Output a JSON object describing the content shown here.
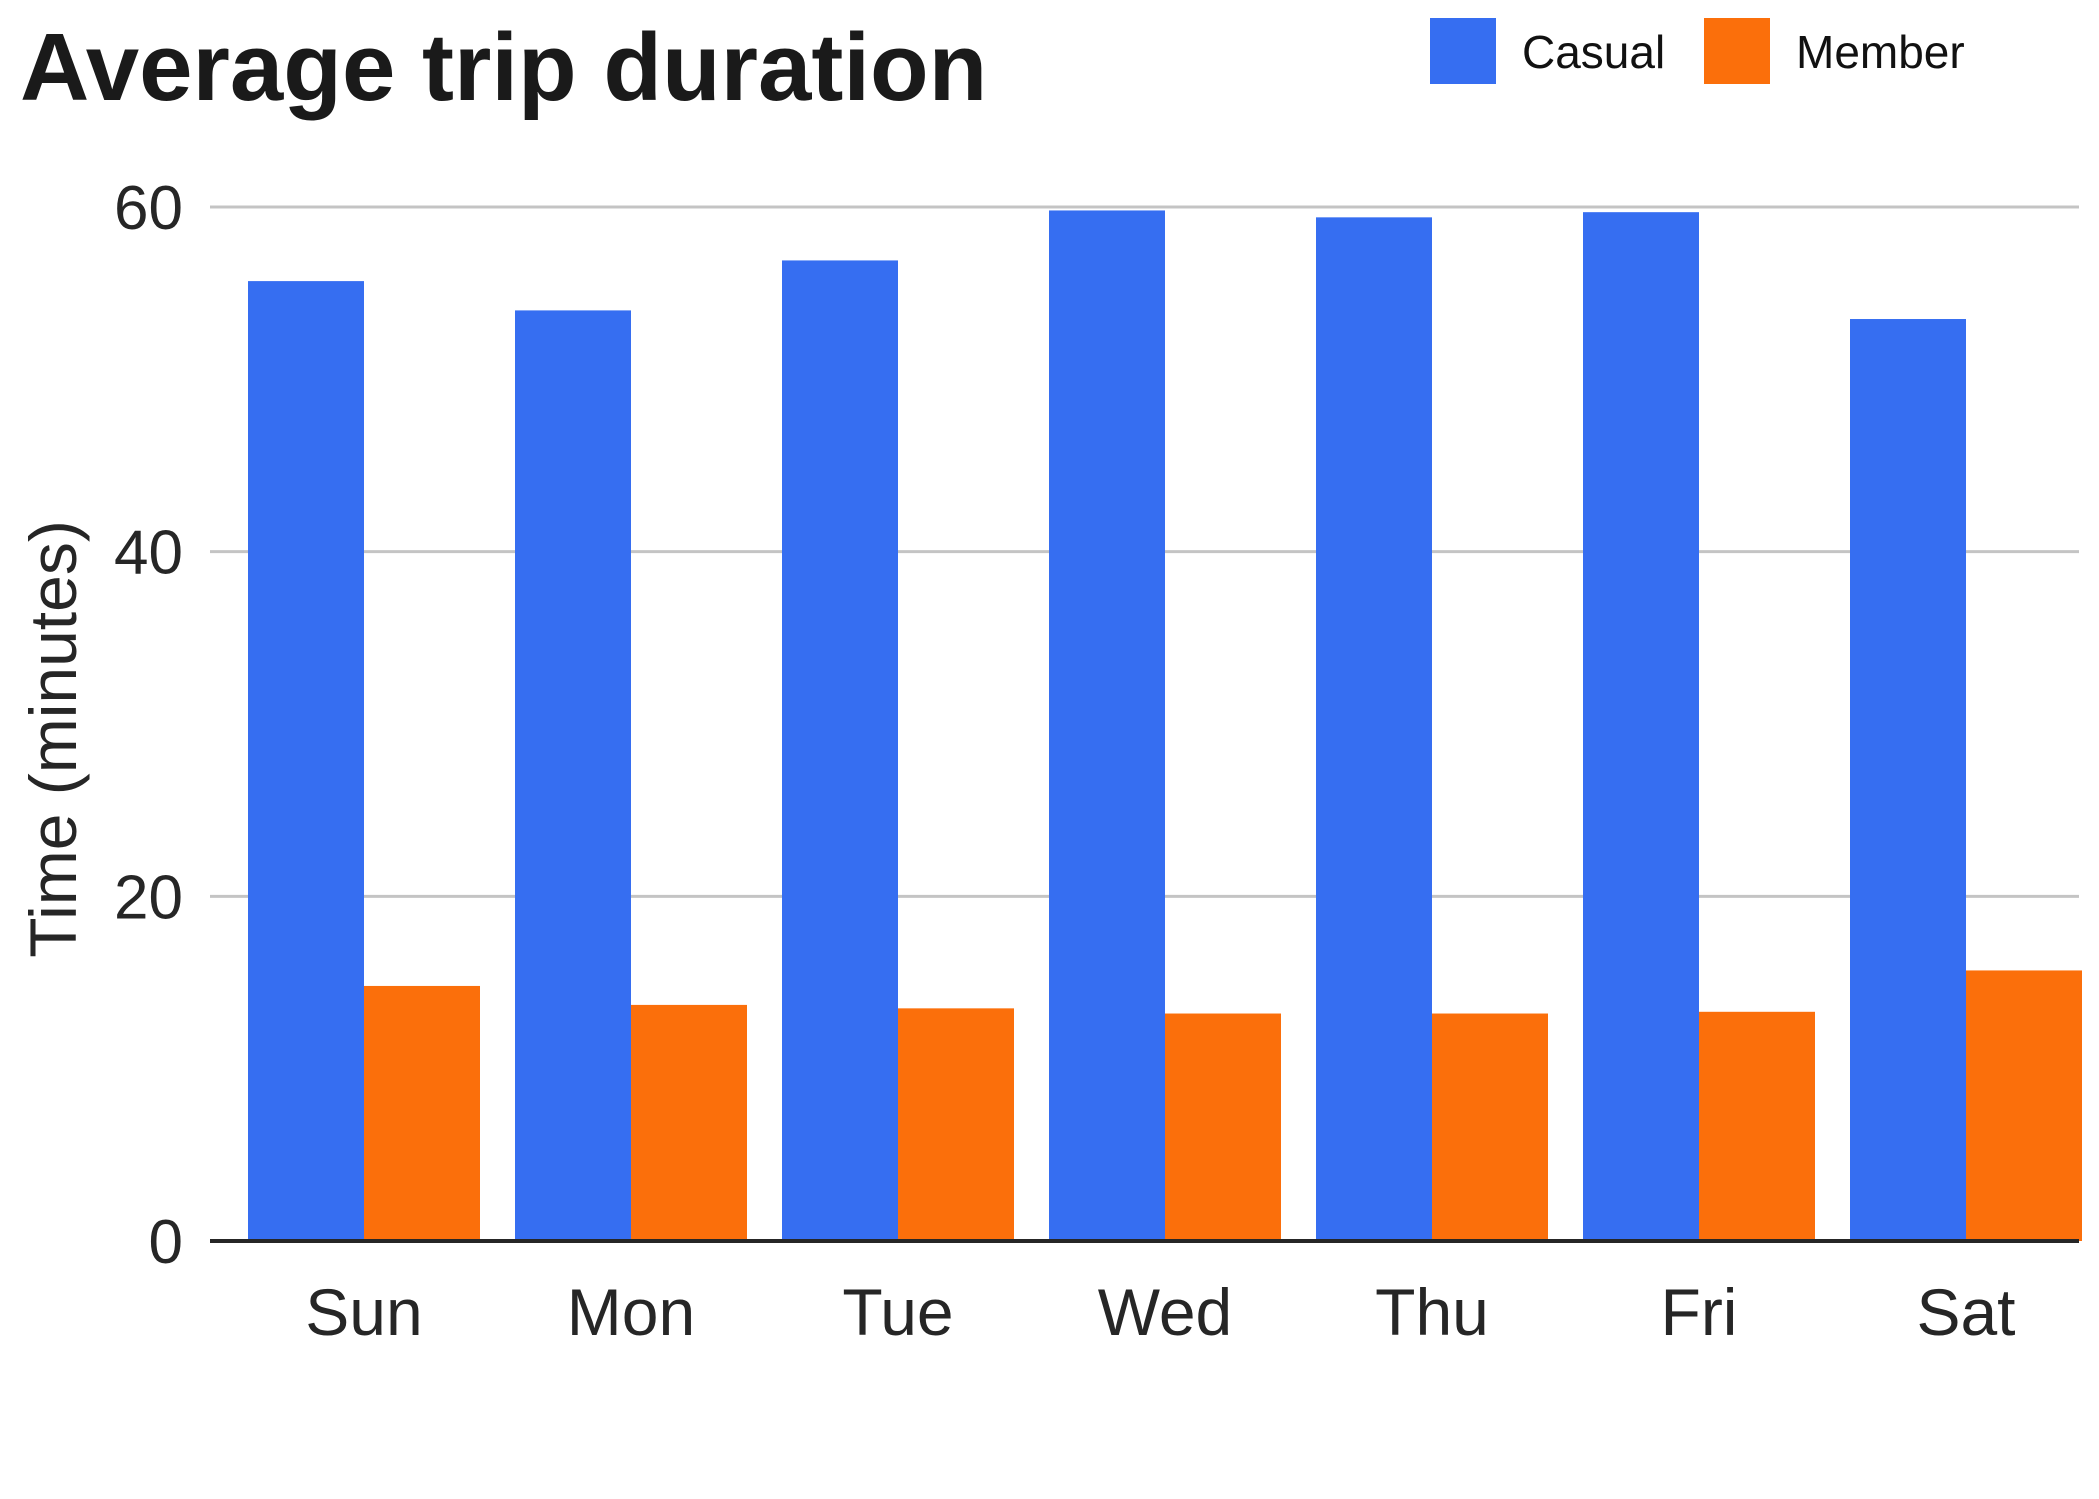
{
  "chart_data": {
    "type": "bar",
    "title": "Average trip duration",
    "xlabel": "",
    "ylabel": "Time (minutes)",
    "categories": [
      "Sun",
      "Mon",
      "Tue",
      "Wed",
      "Thu",
      "Fri",
      "Sat"
    ],
    "series": [
      {
        "name": "Casual",
        "color": "#366EF1",
        "values": [
          55.7,
          54.0,
          56.9,
          59.8,
          59.4,
          59.7,
          53.5
        ]
      },
      {
        "name": "Member",
        "color": "#FB6F0B",
        "values": [
          14.8,
          13.7,
          13.5,
          13.2,
          13.2,
          13.3,
          15.7
        ]
      }
    ],
    "ylim": [
      0,
      60
    ],
    "yticks": [
      "0",
      "20",
      "40",
      "60"
    ],
    "grid": true,
    "legend_position": "top-right"
  }
}
